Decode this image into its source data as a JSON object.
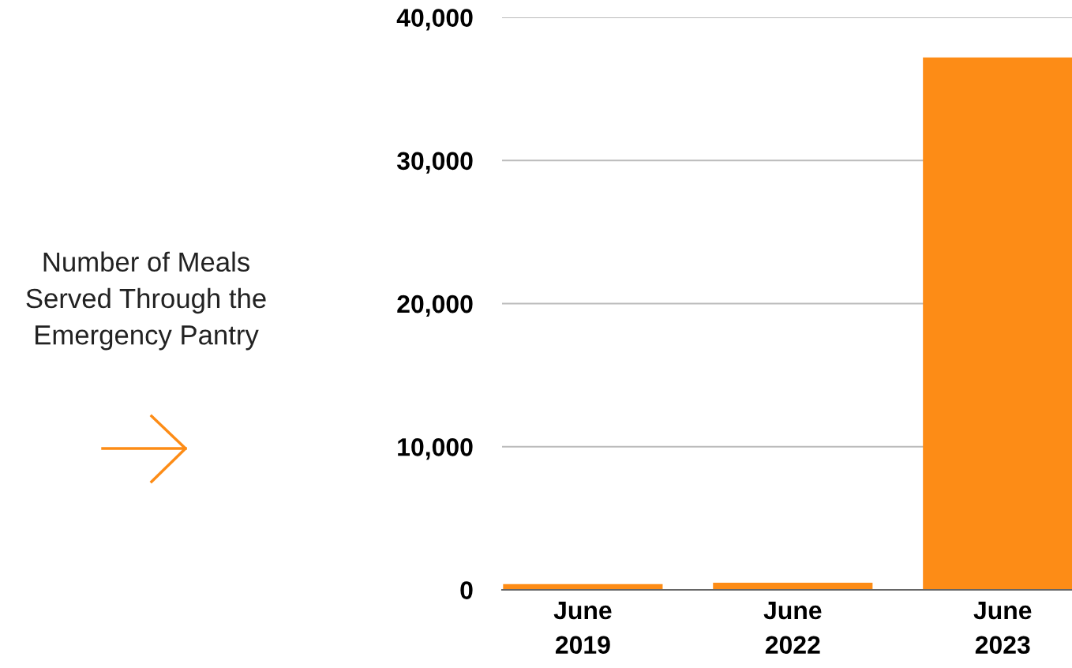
{
  "chart_data": {
    "type": "bar",
    "categories": [
      "June\n2019",
      "June\n2022",
      "June\n2023"
    ],
    "values": [
      400,
      500,
      37200
    ],
    "color": "#fd8c16",
    "ylim": [
      0,
      40000
    ],
    "yticks": [
      {
        "value": 0,
        "label": "0"
      },
      {
        "value": 10000,
        "label": "10,000"
      },
      {
        "value": 20000,
        "label": "20,000"
      },
      {
        "value": 30000,
        "label": "30,000"
      },
      {
        "value": 40000,
        "label": "40,000"
      }
    ],
    "grid": "y",
    "annotations": [
      "Number of Meals\nServed Through the\nEmergency Pantry"
    ]
  }
}
